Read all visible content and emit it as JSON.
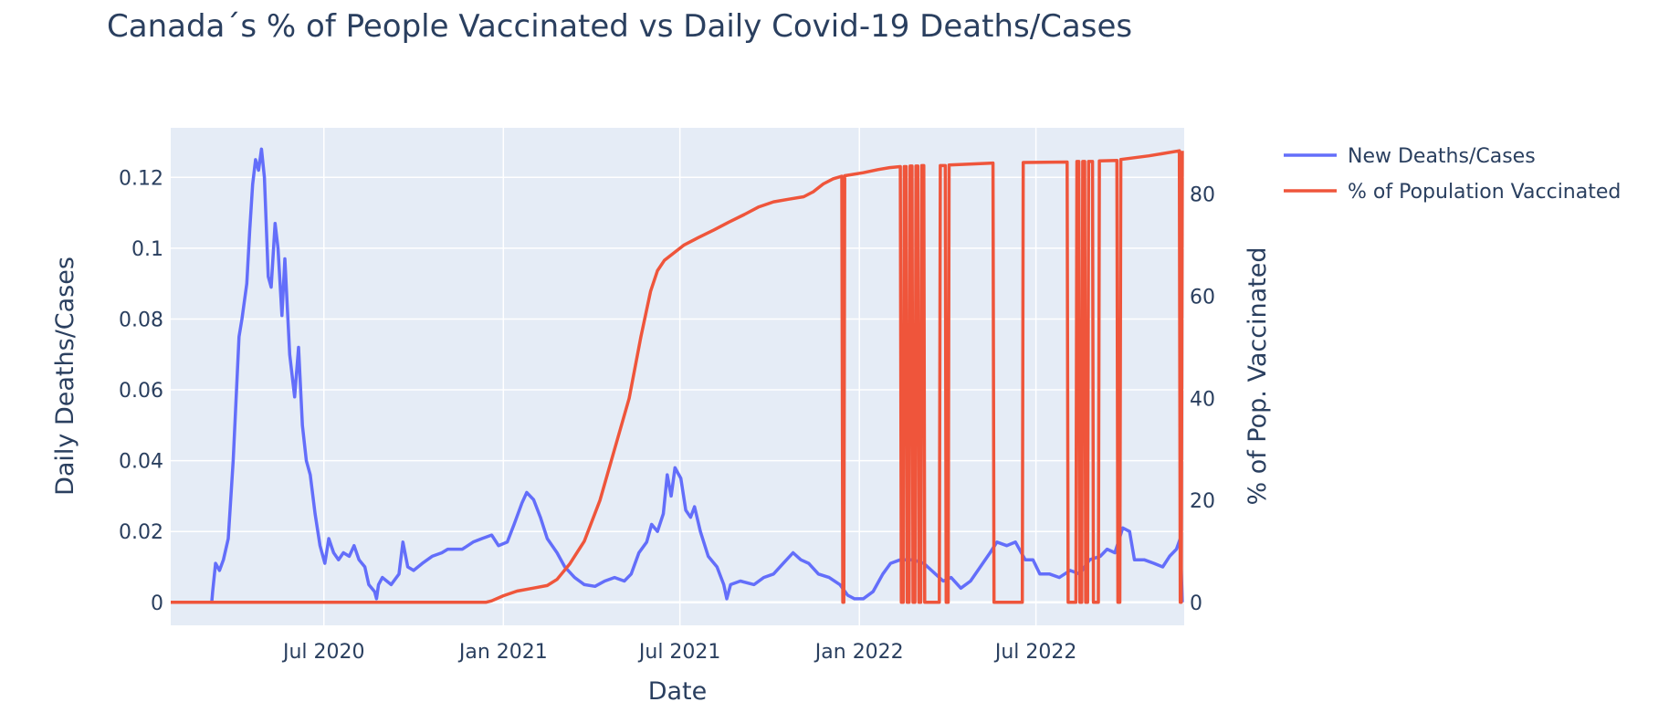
{
  "chart_data": {
    "type": "line",
    "title": "Canada´s % of People Vaccinated vs Daily Covid-19 Deaths/Cases",
    "xlabel": "Date",
    "ylabel": "Daily Deaths/Cases",
    "y2label": "% of Pop. Vaccinated",
    "x_tick_labels": [
      "Jul 2020",
      "Jan 2021",
      "Jul 2021",
      "Jan 2022",
      "Jul 2022"
    ],
    "y_tick_labels": [
      "0",
      "0.02",
      "0.04",
      "0.06",
      "0.08",
      "0.1",
      "0.12"
    ],
    "y2_tick_labels": [
      "0",
      "20",
      "40",
      "60",
      "80"
    ],
    "xlim": [
      "2020-01-26",
      "2022-11-30"
    ],
    "ylim": [
      -0.0065,
      0.134
    ],
    "y2lim": [
      -4.5,
      93
    ],
    "grid": true,
    "legend_position": "top-right",
    "colors": {
      "plot_bg": "#e5ecf6",
      "grid": "#ffffff",
      "text": "#2a3f5f"
    },
    "series": [
      {
        "name": "New Deaths/Cases",
        "axis": "left",
        "color": "#636efa",
        "points": [
          [
            "2020-01-26",
            0
          ],
          [
            "2020-03-08",
            0
          ],
          [
            "2020-03-09",
            0.003
          ],
          [
            "2020-03-12",
            0.011
          ],
          [
            "2020-03-16",
            0.009
          ],
          [
            "2020-03-20",
            0.012
          ],
          [
            "2020-03-25",
            0.018
          ],
          [
            "2020-03-30",
            0.04
          ],
          [
            "2020-04-05",
            0.075
          ],
          [
            "2020-04-08",
            0.08
          ],
          [
            "2020-04-13",
            0.09
          ],
          [
            "2020-04-16",
            0.105
          ],
          [
            "2020-04-19",
            0.118
          ],
          [
            "2020-04-22",
            0.125
          ],
          [
            "2020-04-25",
            0.122
          ],
          [
            "2020-04-28",
            0.128
          ],
          [
            "2020-05-01",
            0.12
          ],
          [
            "2020-05-05",
            0.092
          ],
          [
            "2020-05-08",
            0.089
          ],
          [
            "2020-05-12",
            0.107
          ],
          [
            "2020-05-15",
            0.1
          ],
          [
            "2020-05-19",
            0.081
          ],
          [
            "2020-05-22",
            0.097
          ],
          [
            "2020-05-27",
            0.07
          ],
          [
            "2020-06-01",
            0.058
          ],
          [
            "2020-06-05",
            0.072
          ],
          [
            "2020-06-09",
            0.05
          ],
          [
            "2020-06-13",
            0.04
          ],
          [
            "2020-06-17",
            0.036
          ],
          [
            "2020-06-22",
            0.025
          ],
          [
            "2020-06-27",
            0.016
          ],
          [
            "2020-07-02",
            0.011
          ],
          [
            "2020-07-06",
            0.018
          ],
          [
            "2020-07-11",
            0.014
          ],
          [
            "2020-07-16",
            0.012
          ],
          [
            "2020-07-21",
            0.014
          ],
          [
            "2020-07-27",
            0.013
          ],
          [
            "2020-08-01",
            0.016
          ],
          [
            "2020-08-06",
            0.012
          ],
          [
            "2020-08-12",
            0.01
          ],
          [
            "2020-08-16",
            0.005
          ],
          [
            "2020-08-22",
            0.003
          ],
          [
            "2020-08-24",
            0.001
          ],
          [
            "2020-08-26",
            0.005
          ],
          [
            "2020-08-30",
            0.007
          ],
          [
            "2020-09-08",
            0.005
          ],
          [
            "2020-09-16",
            0.008
          ],
          [
            "2020-09-20",
            0.017
          ],
          [
            "2020-09-25",
            0.01
          ],
          [
            "2020-10-01",
            0.009
          ],
          [
            "2020-10-10",
            0.011
          ],
          [
            "2020-10-20",
            0.013
          ],
          [
            "2020-10-30",
            0.014
          ],
          [
            "2020-11-05",
            0.015
          ],
          [
            "2020-11-10",
            0.015
          ],
          [
            "2020-11-20",
            0.015
          ],
          [
            "2020-12-01",
            0.017
          ],
          [
            "2020-12-10",
            0.018
          ],
          [
            "2020-12-20",
            0.019
          ],
          [
            "2020-12-27",
            0.016
          ],
          [
            "2021-01-05",
            0.017
          ],
          [
            "2021-01-12",
            0.022
          ],
          [
            "2021-01-20",
            0.028
          ],
          [
            "2021-01-25",
            0.031
          ],
          [
            "2021-02-01",
            0.029
          ],
          [
            "2021-02-08",
            0.024
          ],
          [
            "2021-02-15",
            0.018
          ],
          [
            "2021-02-25",
            0.014
          ],
          [
            "2021-03-05",
            0.01
          ],
          [
            "2021-03-15",
            0.007
          ],
          [
            "2021-03-25",
            0.005
          ],
          [
            "2021-04-05",
            0.0045
          ],
          [
            "2021-04-15",
            0.006
          ],
          [
            "2021-04-25",
            0.007
          ],
          [
            "2021-05-05",
            0.006
          ],
          [
            "2021-05-12",
            0.008
          ],
          [
            "2021-05-20",
            0.014
          ],
          [
            "2021-05-28",
            0.017
          ],
          [
            "2021-06-02",
            0.022
          ],
          [
            "2021-06-08",
            0.02
          ],
          [
            "2021-06-14",
            0.025
          ],
          [
            "2021-06-18",
            0.036
          ],
          [
            "2021-06-22",
            0.03
          ],
          [
            "2021-06-26",
            0.038
          ],
          [
            "2021-07-02",
            0.035
          ],
          [
            "2021-07-07",
            0.026
          ],
          [
            "2021-07-12",
            0.024
          ],
          [
            "2021-07-16",
            0.027
          ],
          [
            "2021-07-22",
            0.02
          ],
          [
            "2021-07-30",
            0.013
          ],
          [
            "2021-08-08",
            0.01
          ],
          [
            "2021-08-15",
            0.005
          ],
          [
            "2021-08-18",
            0.001
          ],
          [
            "2021-08-22",
            0.005
          ],
          [
            "2021-09-01",
            0.006
          ],
          [
            "2021-09-15",
            0.005
          ],
          [
            "2021-09-25",
            0.007
          ],
          [
            "2021-10-05",
            0.008
          ],
          [
            "2021-10-15",
            0.011
          ],
          [
            "2021-10-25",
            0.014
          ],
          [
            "2021-11-02",
            0.012
          ],
          [
            "2021-11-10",
            0.011
          ],
          [
            "2021-11-20",
            0.008
          ],
          [
            "2021-12-01",
            0.007
          ],
          [
            "2021-12-12",
            0.005
          ],
          [
            "2021-12-20",
            0.002
          ],
          [
            "2021-12-27",
            0.001
          ],
          [
            "2022-01-05",
            0.001
          ],
          [
            "2022-01-15",
            0.003
          ],
          [
            "2022-01-25",
            0.008
          ],
          [
            "2022-02-02",
            0.011
          ],
          [
            "2022-02-12",
            0.012
          ],
          [
            "2022-02-25",
            0.012
          ],
          [
            "2022-03-08",
            0.011
          ],
          [
            "2022-03-20",
            0.008
          ],
          [
            "2022-03-28",
            0.006
          ],
          [
            "2022-04-05",
            0.007
          ],
          [
            "2022-04-15",
            0.004
          ],
          [
            "2022-04-25",
            0.006
          ],
          [
            "2022-05-05",
            0.01
          ],
          [
            "2022-05-15",
            0.014
          ],
          [
            "2022-05-22",
            0.017
          ],
          [
            "2022-06-01",
            0.016
          ],
          [
            "2022-06-10",
            0.017
          ],
          [
            "2022-06-20",
            0.012
          ],
          [
            "2022-06-28",
            0.012
          ],
          [
            "2022-07-05",
            0.008
          ],
          [
            "2022-07-15",
            0.008
          ],
          [
            "2022-07-25",
            0.007
          ],
          [
            "2022-08-05",
            0.009
          ],
          [
            "2022-08-15",
            0.008
          ],
          [
            "2022-08-25",
            0.012
          ],
          [
            "2022-09-05",
            0.013
          ],
          [
            "2022-09-12",
            0.015
          ],
          [
            "2022-09-20",
            0.014
          ],
          [
            "2022-09-28",
            0.021
          ],
          [
            "2022-10-05",
            0.02
          ],
          [
            "2022-10-10",
            0.012
          ],
          [
            "2022-10-20",
            0.012
          ],
          [
            "2022-10-30",
            0.011
          ],
          [
            "2022-11-08",
            0.01
          ],
          [
            "2022-11-15",
            0.013
          ],
          [
            "2022-11-22",
            0.015
          ],
          [
            "2022-11-26",
            0.018
          ],
          [
            "2022-11-28",
            0.0
          ]
        ]
      },
      {
        "name": "% of Population Vaccinated",
        "axis": "right",
        "color": "#ef553b",
        "points": [
          [
            "2020-01-26",
            0
          ],
          [
            "2020-12-14",
            0
          ],
          [
            "2020-12-20",
            0.3
          ],
          [
            "2021-01-01",
            1.3
          ],
          [
            "2021-01-15",
            2.2
          ],
          [
            "2021-02-01",
            2.8
          ],
          [
            "2021-02-15",
            3.3
          ],
          [
            "2021-02-25",
            4.5
          ],
          [
            "2021-03-10",
            7.5
          ],
          [
            "2021-03-25",
            12
          ],
          [
            "2021-04-10",
            20
          ],
          [
            "2021-04-25",
            30
          ],
          [
            "2021-05-10",
            40
          ],
          [
            "2021-05-22",
            52
          ],
          [
            "2021-06-01",
            61
          ],
          [
            "2021-06-08",
            65
          ],
          [
            "2021-06-15",
            67
          ],
          [
            "2021-06-25",
            68.5
          ],
          [
            "2021-07-05",
            70
          ],
          [
            "2021-07-20",
            71.5
          ],
          [
            "2021-08-05",
            73
          ],
          [
            "2021-08-20",
            74.5
          ],
          [
            "2021-09-05",
            76
          ],
          [
            "2021-09-20",
            77.5
          ],
          [
            "2021-10-05",
            78.5
          ],
          [
            "2021-10-20",
            79
          ],
          [
            "2021-11-05",
            79.5
          ],
          [
            "2021-11-15",
            80.5
          ],
          [
            "2021-11-25",
            82
          ],
          [
            "2021-12-05",
            83
          ],
          [
            "2021-12-14",
            83.5
          ],
          [
            "2021-12-15",
            0
          ],
          [
            "2021-12-16",
            0
          ],
          [
            "2021-12-17",
            83.6
          ],
          [
            "2022-01-05",
            84.2
          ],
          [
            "2022-01-20",
            84.8
          ],
          [
            "2022-02-01",
            85.2
          ],
          [
            "2022-02-12",
            85.4
          ],
          [
            "2022-02-13",
            0
          ],
          [
            "2022-02-15",
            0
          ],
          [
            "2022-02-16",
            85.4
          ],
          [
            "2022-02-18",
            85.4
          ],
          [
            "2022-02-19",
            0
          ],
          [
            "2022-02-21",
            0
          ],
          [
            "2022-02-22",
            85.5
          ],
          [
            "2022-02-24",
            85.5
          ],
          [
            "2022-02-25",
            0
          ],
          [
            "2022-02-27",
            0
          ],
          [
            "2022-02-28",
            85.5
          ],
          [
            "2022-03-02",
            85.5
          ],
          [
            "2022-03-03",
            0
          ],
          [
            "2022-03-05",
            0
          ],
          [
            "2022-03-06",
            85.6
          ],
          [
            "2022-03-08",
            85.6
          ],
          [
            "2022-03-09",
            0
          ],
          [
            "2022-03-24",
            0
          ],
          [
            "2022-03-25",
            85.6
          ],
          [
            "2022-03-30",
            85.6
          ],
          [
            "2022-03-31",
            0
          ],
          [
            "2022-04-02",
            0
          ],
          [
            "2022-04-03",
            85.7
          ],
          [
            "2022-05-18",
            86.1
          ],
          [
            "2022-05-19",
            0
          ],
          [
            "2022-06-17",
            0
          ],
          [
            "2022-06-18",
            86.2
          ],
          [
            "2022-08-02",
            86.3
          ],
          [
            "2022-08-03",
            0
          ],
          [
            "2022-08-11",
            0
          ],
          [
            "2022-08-12",
            86.4
          ],
          [
            "2022-08-14",
            86.4
          ],
          [
            "2022-08-15",
            0
          ],
          [
            "2022-08-17",
            0
          ],
          [
            "2022-08-18",
            86.4
          ],
          [
            "2022-08-20",
            86.4
          ],
          [
            "2022-08-21",
            0
          ],
          [
            "2022-08-23",
            0
          ],
          [
            "2022-08-24",
            86.4
          ],
          [
            "2022-08-28",
            86.4
          ],
          [
            "2022-08-29",
            0
          ],
          [
            "2022-09-03",
            0
          ],
          [
            "2022-09-04",
            86.5
          ],
          [
            "2022-09-22",
            86.6
          ],
          [
            "2022-09-23",
            0
          ],
          [
            "2022-09-25",
            0
          ],
          [
            "2022-09-26",
            86.8
          ],
          [
            "2022-10-25",
            87.5
          ],
          [
            "2022-11-25",
            88.5
          ],
          [
            "2022-11-26",
            0
          ],
          [
            "2022-11-27",
            0
          ],
          [
            "2022-11-28",
            88.5
          ]
        ]
      }
    ]
  }
}
